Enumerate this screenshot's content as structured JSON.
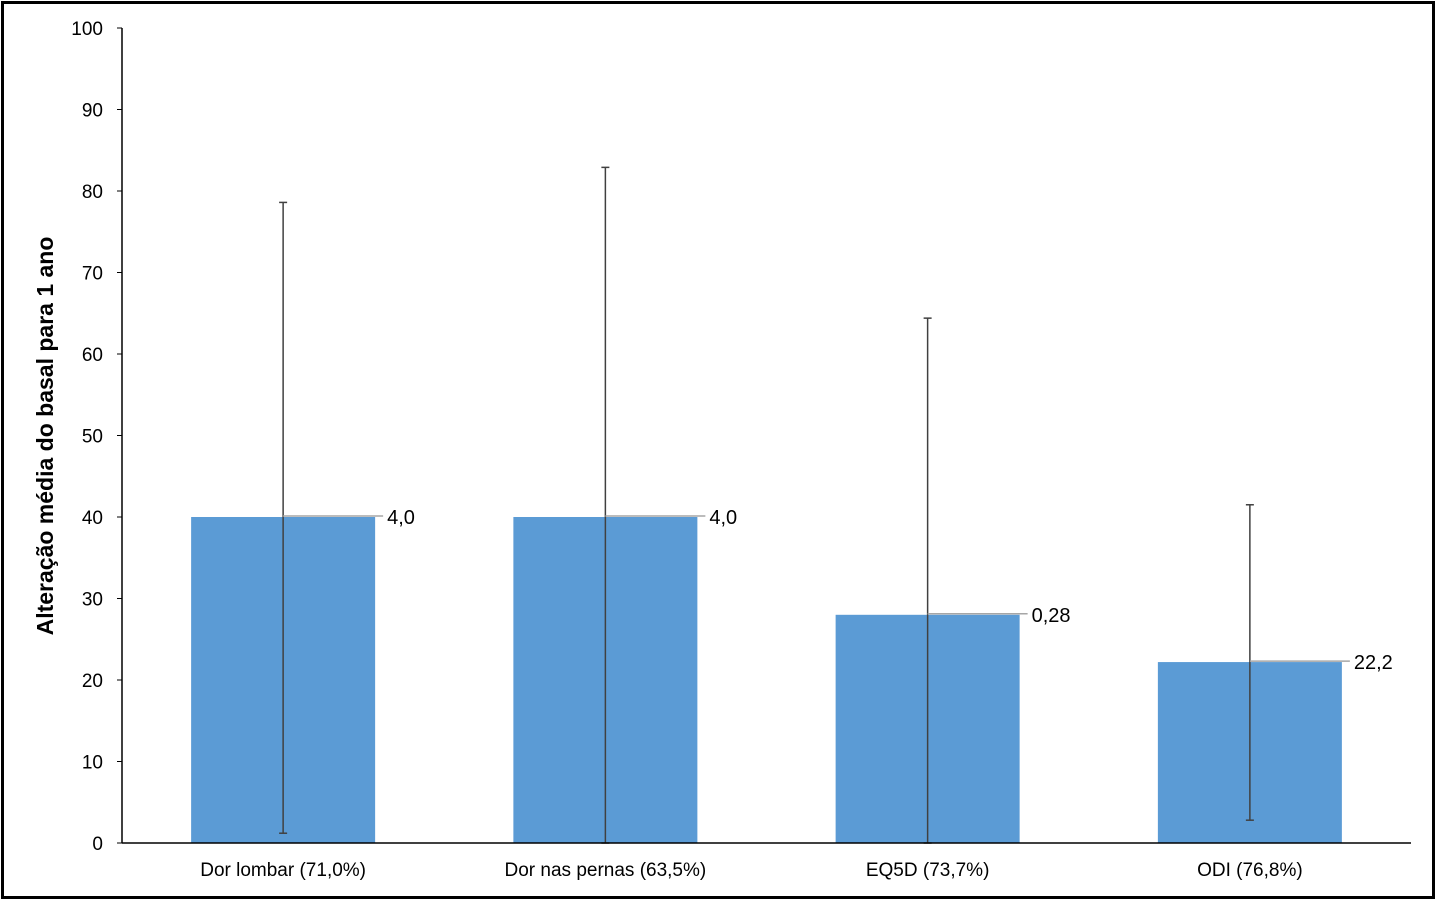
{
  "chart_data": {
    "type": "bar",
    "title": "",
    "xlabel": "",
    "ylabel": "Alteração média do basal para 1 ano",
    "ylim": [
      0,
      100
    ],
    "yticks": [
      0,
      10,
      20,
      30,
      40,
      50,
      60,
      70,
      80,
      90,
      100
    ],
    "grid": false,
    "legend": "none",
    "bar_color": "#5B9BD5",
    "error_bar_color": "#404040",
    "categories": [
      "Dor lombar (71,0%)",
      "Dor nas pernas (63,5%)",
      "EQ5D (73,7%)",
      "ODI (76,8%)"
    ],
    "values": [
      40,
      40,
      28,
      22.2
    ],
    "data_labels": [
      "4,0",
      "4,0",
      "0,28",
      "22,2"
    ],
    "error_low": [
      1.2,
      0,
      0,
      2.8
    ],
    "error_high": [
      78.6,
      82.9,
      64.4,
      41.5
    ]
  }
}
